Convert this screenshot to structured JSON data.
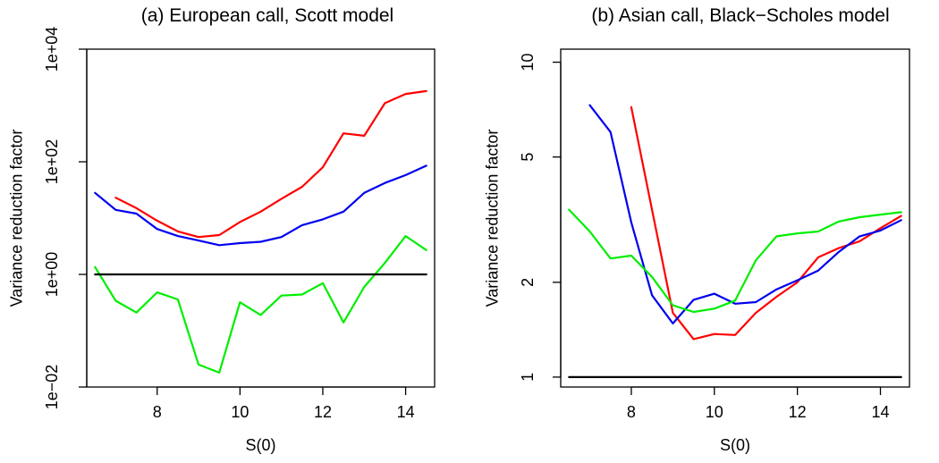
{
  "colors": {
    "red": "#ff0000",
    "blue": "#0000ee",
    "green": "#00ee00",
    "black": "#000000"
  },
  "chart_data": [
    {
      "type": "line",
      "title": "(a) European call, Scott model",
      "xlabel": "S(0)",
      "ylabel": "Variance reduction factor",
      "yscale": "log",
      "xlim": [
        6.3,
        14.7
      ],
      "ylim": [
        0.01,
        10000
      ],
      "xticks": [
        8,
        10,
        12,
        14
      ],
      "xtick_labels": [
        "8",
        "10",
        "12",
        "14"
      ],
      "yticks": [
        0.01,
        1,
        100,
        10000
      ],
      "ytick_labels": [
        "1e−02",
        "1e+00",
        "1e+02",
        "1e+04"
      ],
      "series": [
        {
          "color": "#ff0000",
          "x": [
            7,
            7.5,
            8,
            8.5,
            9,
            9.5,
            10,
            10.5,
            11,
            11.5,
            12,
            12.5,
            13,
            13.5,
            14,
            14.5
          ],
          "y": [
            23,
            15,
            9,
            5.8,
            4.6,
            5,
            8.5,
            13,
            22,
            36,
            80,
            320,
            290,
            1100,
            1600,
            1800
          ]
        },
        {
          "color": "#0000ee",
          "x": [
            6.5,
            7,
            7.5,
            8,
            8.5,
            9,
            9.5,
            10,
            10.5,
            11,
            11.5,
            12,
            12.5,
            13,
            13.5,
            14,
            14.5
          ],
          "y": [
            28,
            14,
            12,
            6.4,
            4.8,
            4,
            3.3,
            3.6,
            3.8,
            4.6,
            7.5,
            9.5,
            13,
            28,
            42,
            58,
            85
          ]
        },
        {
          "color": "#00ee00",
          "x": [
            6.5,
            7,
            7.5,
            8,
            8.5,
            9,
            9.5,
            10,
            10.5,
            11,
            11.5,
            12,
            12.5,
            13,
            13.5,
            14,
            14.5
          ],
          "y": [
            1.35,
            0.34,
            0.21,
            0.48,
            0.36,
            0.025,
            0.018,
            0.32,
            0.19,
            0.42,
            0.44,
            0.7,
            0.14,
            0.6,
            1.6,
            4.8,
            2.7
          ]
        },
        {
          "color": "#000000",
          "x": [
            6.5,
            14.5
          ],
          "y": [
            1,
            1
          ]
        }
      ]
    },
    {
      "type": "line",
      "title": "(b) Asian call, Black−Scholes model",
      "xlabel": "S(0)",
      "ylabel": "Variance reduction factor",
      "yscale": "log",
      "xlim": [
        6.3,
        14.7
      ],
      "ylim": [
        0.93,
        11
      ],
      "xticks": [
        8,
        10,
        12,
        14
      ],
      "xtick_labels": [
        "8",
        "10",
        "12",
        "14"
      ],
      "yticks": [
        1,
        2,
        5,
        10
      ],
      "ytick_labels": [
        "1",
        "2",
        "5",
        "10"
      ],
      "series": [
        {
          "color": "#ff0000",
          "x": [
            8,
            8.5,
            9,
            9.5,
            10,
            10.5,
            11,
            11.5,
            12,
            12.5,
            13,
            13.5,
            14,
            14.5
          ],
          "y": [
            7.2,
            3.4,
            1.6,
            1.32,
            1.37,
            1.36,
            1.6,
            1.8,
            2.0,
            2.4,
            2.57,
            2.7,
            2.97,
            3.25
          ]
        },
        {
          "color": "#0000ee",
          "x": [
            7,
            7.5,
            8,
            8.5,
            9,
            9.5,
            10,
            10.5,
            11,
            11.5,
            12,
            12.5,
            13,
            13.5,
            14,
            14.5
          ],
          "y": [
            7.3,
            6.0,
            3.1,
            1.82,
            1.48,
            1.76,
            1.84,
            1.71,
            1.73,
            1.9,
            2.03,
            2.18,
            2.5,
            2.8,
            2.92,
            3.15
          ]
        },
        {
          "color": "#00ee00",
          "x": [
            6.5,
            7,
            7.5,
            8,
            8.5,
            9,
            9.5,
            10,
            10.5,
            11,
            11.5,
            12,
            12.5,
            13,
            13.5,
            14,
            14.5
          ],
          "y": [
            3.4,
            2.9,
            2.38,
            2.43,
            2.08,
            1.69,
            1.61,
            1.65,
            1.75,
            2.35,
            2.8,
            2.86,
            2.9,
            3.12,
            3.22,
            3.28,
            3.34
          ]
        },
        {
          "color": "#000000",
          "x": [
            6.5,
            14.5
          ],
          "y": [
            1,
            1
          ]
        }
      ]
    }
  ]
}
